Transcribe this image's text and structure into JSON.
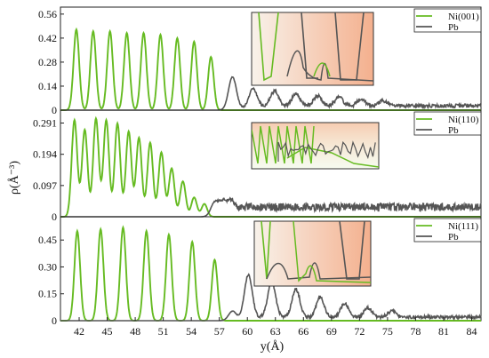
{
  "chart_data": [
    {
      "type": "line",
      "panel": "top",
      "xlim": [
        40,
        85
      ],
      "ylim": [
        0,
        0.58
      ],
      "yticks": [
        "0.56",
        "0.42",
        "0.28",
        "0.14",
        "0"
      ],
      "ytick_values": [
        0.56,
        0.42,
        0.28,
        0.14,
        0
      ],
      "series": [
        {
          "name": "Ni(001)",
          "color": "#66bb22",
          "peaks_x": [
            41.7,
            43.5,
            45.3,
            47.1,
            48.9,
            50.7,
            52.5,
            54.3,
            56.1
          ],
          "peaks_y": [
            0.47,
            0.46,
            0.46,
            0.45,
            0.45,
            0.44,
            0.42,
            0.4,
            0.31
          ]
        },
        {
          "name": "Pb",
          "color": "#555555",
          "peaks_x": [
            58.4,
            60.6,
            62.9,
            65.2,
            67.5,
            69.8,
            72.2,
            74.5
          ],
          "peaks_y": [
            0.19,
            0.11,
            0.085,
            0.07,
            0.06,
            0.05,
            0.04,
            0.03
          ],
          "plateau": 0.025
        }
      ],
      "inset": {
        "has_inset": true
      }
    },
    {
      "type": "line",
      "panel": "middle",
      "xlim": [
        40,
        85
      ],
      "ylim": [
        0,
        0.32
      ],
      "yticks": [
        "0.291",
        "0.194",
        "0.097",
        "0"
      ],
      "ytick_values": [
        0.291,
        0.194,
        0.097,
        0
      ],
      "series": [
        {
          "name": "Ni(110)",
          "color": "#66bb22",
          "peaks_x": [
            41.5,
            42.6,
            43.8,
            44.9,
            46.1,
            47.3,
            48.4,
            49.6,
            50.8,
            51.9,
            53.1,
            54.3,
            55.4
          ],
          "peaks_y": [
            0.3,
            0.27,
            0.305,
            0.3,
            0.29,
            0.265,
            0.245,
            0.23,
            0.2,
            0.15,
            0.11,
            0.06,
            0.04
          ]
        },
        {
          "name": "Pb",
          "color": "#555555",
          "peaks_x": [
            56.5,
            57.4,
            58.3
          ],
          "peaks_y": [
            0.04,
            0.035,
            0.03
          ],
          "plateau": 0.03
        }
      ],
      "inset": {
        "has_inset": true
      }
    },
    {
      "type": "line",
      "panel": "bottom",
      "xlim": [
        40,
        85
      ],
      "ylim": [
        0,
        0.56
      ],
      "yticks": [
        "0.45",
        "0.30",
        "0.15",
        "0"
      ],
      "ytick_values": [
        0.45,
        0.3,
        0.15,
        0
      ],
      "xticks": [
        "42",
        "45",
        "48",
        "51",
        "54",
        "57",
        "60",
        "63",
        "66",
        "69",
        "72",
        "75",
        "78",
        "81",
        "84"
      ],
      "xtick_values": [
        42,
        45,
        48,
        51,
        54,
        57,
        60,
        63,
        66,
        69,
        72,
        75,
        78,
        81,
        84
      ],
      "series": [
        {
          "name": "Ni(111)",
          "color": "#66bb22",
          "peaks_x": [
            41.8,
            44.3,
            46.7,
            49.2,
            51.6,
            54.1,
            56.5
          ],
          "peaks_y": [
            0.5,
            0.51,
            0.52,
            0.5,
            0.48,
            0.44,
            0.34
          ]
        },
        {
          "name": "Pb",
          "color": "#555555",
          "peaks_x": [
            58.4,
            60.1,
            62.6,
            65.2,
            67.8,
            70.4,
            72.9,
            75.5
          ],
          "peaks_y": [
            0.05,
            0.245,
            0.195,
            0.155,
            0.11,
            0.075,
            0.05,
            0.035
          ],
          "plateau": 0.02
        }
      ],
      "inset": {
        "has_inset": true
      }
    }
  ],
  "labels": {
    "ylabel": "ρ(Å⁻³)",
    "xlabel": "y(Å)"
  }
}
